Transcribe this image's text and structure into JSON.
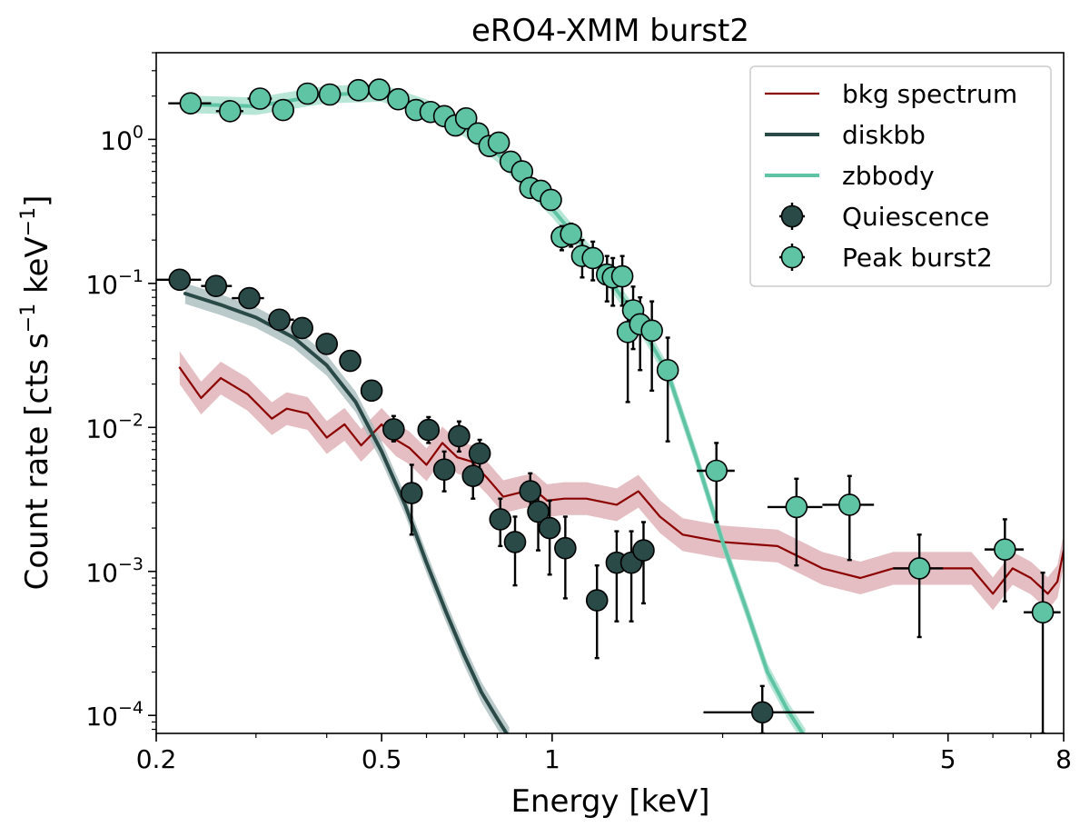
{
  "chart_data": {
    "type": "scatter",
    "title": "eRO4-XMM burst2",
    "xlabel": "Energy [keV]",
    "ylabel_main": "Count rate [cts s",
    "ylabel_exp1": "−1",
    "ylabel_mid": " keV",
    "ylabel_exp2": "−1",
    "ylabel_end": "]",
    "xscale": "log",
    "yscale": "log",
    "xlim": [
      0.2,
      8
    ],
    "ylim": [
      7.5e-05,
      4.0
    ],
    "x_ticks": [
      {
        "value": 0.2,
        "label": "0.2"
      },
      {
        "value": 0.5,
        "label": "0.5"
      },
      {
        "value": 1,
        "label": "1"
      },
      {
        "value": 5,
        "label": "5"
      },
      {
        "value": 8,
        "label": "8"
      }
    ],
    "y_ticks": [
      {
        "value": 0.0001,
        "base": "10",
        "exp": "−4"
      },
      {
        "value": 0.001,
        "base": "10",
        "exp": "−3"
      },
      {
        "value": 0.01,
        "base": "10",
        "exp": "−2"
      },
      {
        "value": 0.1,
        "base": "10",
        "exp": "−1"
      },
      {
        "value": 1,
        "base": "10",
        "exp": "0"
      }
    ],
    "legend": {
      "position": "upper right",
      "entries": [
        {
          "label": "bkg spectrum",
          "kind": "line",
          "color": "#8b0000"
        },
        {
          "label": "diskbb",
          "kind": "line",
          "color": "#2a4a48"
        },
        {
          "label": "zbbody",
          "kind": "line",
          "color": "#5fc4a4"
        },
        {
          "label": "Quiescence",
          "kind": "marker",
          "color": "#2a4a48"
        },
        {
          "label": "Peak burst2",
          "kind": "marker",
          "color": "#5fc4a4"
        }
      ]
    },
    "colors": {
      "bkg": "#8b0000",
      "bkg_band": "#d9a3a8",
      "quiescence": "#2a4a48",
      "diskbb_band": "#a9bcbc",
      "peak": "#5fc4a4",
      "zbbody_band": "#9fdcc8",
      "errorbar": "#000000"
    },
    "series": [
      {
        "name": "bkg spectrum",
        "kind": "line",
        "x": [
          0.22,
          0.24,
          0.26,
          0.29,
          0.32,
          0.34,
          0.37,
          0.4,
          0.43,
          0.46,
          0.5,
          0.53,
          0.56,
          0.6,
          0.64,
          0.68,
          0.72,
          0.77,
          0.82,
          0.87,
          0.93,
          0.98,
          1.05,
          1.15,
          1.3,
          1.42,
          1.55,
          1.7,
          2.0,
          2.5,
          3.0,
          3.5,
          4.0,
          4.5,
          5.0,
          5.5,
          6.0,
          6.5,
          7.0,
          7.5,
          7.8,
          8.0
        ],
        "y": [
          0.026,
          0.016,
          0.022,
          0.017,
          0.0115,
          0.0135,
          0.0125,
          0.0085,
          0.0105,
          0.0075,
          0.0105,
          0.0082,
          0.0072,
          0.0055,
          0.0078,
          0.0062,
          0.0058,
          0.0044,
          0.0033,
          0.0035,
          0.0037,
          0.0031,
          0.0032,
          0.0032,
          0.0029,
          0.0036,
          0.0024,
          0.0018,
          0.0016,
          0.0015,
          0.00105,
          0.0009,
          0.00105,
          0.00105,
          0.00105,
          0.00105,
          0.0007,
          0.00105,
          0.0009,
          0.0007,
          0.00085,
          0.0014
        ],
        "band_factor": 1.3
      },
      {
        "name": "diskbb",
        "kind": "line",
        "x": [
          0.225,
          0.26,
          0.3,
          0.35,
          0.4,
          0.45,
          0.5,
          0.55,
          0.6,
          0.65,
          0.7,
          0.75,
          0.8,
          0.84
        ],
        "y": [
          0.085,
          0.071,
          0.058,
          0.042,
          0.027,
          0.015,
          0.0068,
          0.0029,
          0.00115,
          0.00052,
          0.00026,
          0.000145,
          9.5e-05,
          7e-05
        ],
        "band_factor": 1.18
      },
      {
        "name": "zbbody",
        "kind": "line",
        "x": [
          0.23,
          0.3,
          0.4,
          0.5,
          0.6,
          0.7,
          0.8,
          0.9,
          1.0,
          1.1,
          1.2,
          1.4,
          1.6,
          1.8,
          2.0,
          2.2,
          2.4,
          2.6,
          2.8
        ],
        "y": [
          1.75,
          1.7,
          2.05,
          2.1,
          1.65,
          1.2,
          0.8,
          0.5,
          0.33,
          0.21,
          0.14,
          0.06,
          0.024,
          0.006,
          0.0016,
          0.00055,
          0.0002,
          0.00011,
          7e-05
        ],
        "band_factor": 1.15
      },
      {
        "name": "Quiescence",
        "kind": "points",
        "points": [
          {
            "x": 0.22,
            "y": 0.106,
            "xlo": 0.2,
            "xhi": 0.24,
            "ylo": 0.1,
            "yhi": 0.112
          },
          {
            "x": 0.255,
            "y": 0.096,
            "xlo": 0.24,
            "xhi": 0.272,
            "ylo": 0.09,
            "yhi": 0.103
          },
          {
            "x": 0.292,
            "y": 0.079,
            "xlo": 0.272,
            "xhi": 0.31,
            "ylo": 0.073,
            "yhi": 0.085
          },
          {
            "x": 0.33,
            "y": 0.056,
            "xlo": 0.315,
            "xhi": 0.35,
            "ylo": 0.051,
            "yhi": 0.061
          },
          {
            "x": 0.362,
            "y": 0.049,
            "xlo": 0.35,
            "xhi": 0.378,
            "ylo": 0.045,
            "yhi": 0.053
          },
          {
            "x": 0.4,
            "y": 0.038,
            "xlo": 0.385,
            "xhi": 0.415,
            "ylo": 0.034,
            "yhi": 0.042
          },
          {
            "x": 0.44,
            "y": 0.029,
            "xlo": 0.43,
            "xhi": 0.455,
            "ylo": 0.026,
            "yhi": 0.032
          },
          {
            "x": 0.48,
            "y": 0.018,
            "xlo": 0.47,
            "xhi": 0.49,
            "ylo": 0.016,
            "yhi": 0.02
          },
          {
            "x": 0.525,
            "y": 0.0097,
            "xlo": 0.51,
            "xhi": 0.54,
            "ylo": 0.008,
            "yhi": 0.012
          },
          {
            "x": 0.565,
            "y": 0.0035,
            "xlo": 0.555,
            "xhi": 0.575,
            "ylo": 0.0018,
            "yhi": 0.0055
          },
          {
            "x": 0.605,
            "y": 0.0096,
            "xlo": 0.59,
            "xhi": 0.62,
            "ylo": 0.0078,
            "yhi": 0.0118
          },
          {
            "x": 0.645,
            "y": 0.0051,
            "xlo": 0.635,
            "xhi": 0.655,
            "ylo": 0.0036,
            "yhi": 0.0068
          },
          {
            "x": 0.685,
            "y": 0.0087,
            "xlo": 0.672,
            "xhi": 0.698,
            "ylo": 0.0068,
            "yhi": 0.011
          },
          {
            "x": 0.725,
            "y": 0.0046,
            "xlo": 0.715,
            "xhi": 0.735,
            "ylo": 0.0032,
            "yhi": 0.0062
          },
          {
            "x": 0.745,
            "y": 0.0066,
            "xlo": 0.73,
            "xhi": 0.76,
            "ylo": 0.0051,
            "yhi": 0.0082
          },
          {
            "x": 0.81,
            "y": 0.0023,
            "xlo": 0.8,
            "xhi": 0.82,
            "ylo": 0.0015,
            "yhi": 0.0032
          },
          {
            "x": 0.86,
            "y": 0.0016,
            "xlo": 0.85,
            "xhi": 0.87,
            "ylo": 0.0008,
            "yhi": 0.0024
          },
          {
            "x": 0.915,
            "y": 0.0036,
            "xlo": 0.9,
            "xhi": 0.93,
            "ylo": 0.0026,
            "yhi": 0.0048
          },
          {
            "x": 0.945,
            "y": 0.0026,
            "xlo": 0.935,
            "xhi": 0.955,
            "ylo": 0.0014,
            "yhi": 0.0038
          },
          {
            "x": 0.99,
            "y": 0.002,
            "xlo": 0.98,
            "xhi": 1.0,
            "ylo": 0.00095,
            "yhi": 0.0031
          },
          {
            "x": 1.055,
            "y": 0.00145,
            "xlo": 1.045,
            "xhi": 1.065,
            "ylo": 0.00065,
            "yhi": 0.0024
          },
          {
            "x": 1.2,
            "y": 0.00063,
            "xlo": 1.17,
            "xhi": 1.235,
            "ylo": 0.00025,
            "yhi": 0.0011
          },
          {
            "x": 1.3,
            "y": 0.00115,
            "xlo": 1.29,
            "xhi": 1.31,
            "ylo": 0.00045,
            "yhi": 0.0019
          },
          {
            "x": 1.38,
            "y": 0.00115,
            "xlo": 1.37,
            "xhi": 1.39,
            "ylo": 0.00045,
            "yhi": 0.0019
          },
          {
            "x": 1.45,
            "y": 0.0014,
            "xlo": 1.44,
            "xhi": 1.46,
            "ylo": 0.0006,
            "yhi": 0.0022
          },
          {
            "x": 2.35,
            "y": 0.000105,
            "xlo": 1.85,
            "xhi": 2.9,
            "ylo": 7.5e-05,
            "yhi": 0.00016
          }
        ]
      },
      {
        "name": "Peak burst2",
        "kind": "points",
        "points": [
          {
            "x": 0.23,
            "y": 1.78,
            "xlo": 0.21,
            "xhi": 0.25,
            "ylo": 1.65,
            "yhi": 1.92
          },
          {
            "x": 0.27,
            "y": 1.57,
            "xlo": 0.255,
            "xhi": 0.285,
            "ylo": 1.44,
            "yhi": 1.7
          },
          {
            "x": 0.305,
            "y": 1.92,
            "xlo": 0.29,
            "xhi": 0.32,
            "ylo": 1.78,
            "yhi": 2.06
          },
          {
            "x": 0.335,
            "y": 1.6,
            "xlo": 0.325,
            "xhi": 0.345,
            "ylo": 1.46,
            "yhi": 1.75
          },
          {
            "x": 0.37,
            "y": 2.08,
            "xlo": 0.355,
            "xhi": 0.385,
            "ylo": 1.95,
            "yhi": 2.22
          },
          {
            "x": 0.405,
            "y": 2.05,
            "xlo": 0.39,
            "xhi": 0.42,
            "ylo": 1.92,
            "yhi": 2.18
          },
          {
            "x": 0.455,
            "y": 2.2,
            "xlo": 0.44,
            "xhi": 0.47,
            "ylo": 2.07,
            "yhi": 2.33
          },
          {
            "x": 0.495,
            "y": 2.22,
            "xlo": 0.48,
            "xhi": 0.51,
            "ylo": 2.09,
            "yhi": 2.35
          },
          {
            "x": 0.535,
            "y": 1.9,
            "xlo": 0.52,
            "xhi": 0.55,
            "ylo": 1.78,
            "yhi": 2.02
          },
          {
            "x": 0.575,
            "y": 1.6,
            "xlo": 0.565,
            "xhi": 0.585,
            "ylo": 1.49,
            "yhi": 1.71
          },
          {
            "x": 0.61,
            "y": 1.55,
            "xlo": 0.6,
            "xhi": 0.62,
            "ylo": 1.44,
            "yhi": 1.66
          },
          {
            "x": 0.645,
            "y": 1.45,
            "xlo": 0.635,
            "xhi": 0.655,
            "ylo": 1.34,
            "yhi": 1.56
          },
          {
            "x": 0.675,
            "y": 1.25,
            "xlo": 0.665,
            "xhi": 0.685,
            "ylo": 1.15,
            "yhi": 1.35
          },
          {
            "x": 0.705,
            "y": 1.4,
            "xlo": 0.695,
            "xhi": 0.715,
            "ylo": 1.29,
            "yhi": 1.51
          },
          {
            "x": 0.74,
            "y": 1.1,
            "xlo": 0.73,
            "xhi": 0.75,
            "ylo": 1.0,
            "yhi": 1.2
          },
          {
            "x": 0.775,
            "y": 0.9,
            "xlo": 0.765,
            "xhi": 0.785,
            "ylo": 0.82,
            "yhi": 0.98
          },
          {
            "x": 0.805,
            "y": 0.95,
            "xlo": 0.795,
            "xhi": 0.815,
            "ylo": 0.87,
            "yhi": 1.03
          },
          {
            "x": 0.845,
            "y": 0.7,
            "xlo": 0.835,
            "xhi": 0.855,
            "ylo": 0.63,
            "yhi": 0.77
          },
          {
            "x": 0.885,
            "y": 0.6,
            "xlo": 0.875,
            "xhi": 0.895,
            "ylo": 0.54,
            "yhi": 0.66
          },
          {
            "x": 0.915,
            "y": 0.46,
            "xlo": 0.905,
            "xhi": 0.925,
            "ylo": 0.41,
            "yhi": 0.51
          },
          {
            "x": 0.955,
            "y": 0.44,
            "xlo": 0.945,
            "xhi": 0.965,
            "ylo": 0.39,
            "yhi": 0.49
          },
          {
            "x": 0.995,
            "y": 0.38,
            "xlo": 0.985,
            "xhi": 1.005,
            "ylo": 0.33,
            "yhi": 0.43
          },
          {
            "x": 1.04,
            "y": 0.21,
            "xlo": 1.03,
            "xhi": 1.05,
            "ylo": 0.17,
            "yhi": 0.25
          },
          {
            "x": 1.08,
            "y": 0.22,
            "xlo": 1.07,
            "xhi": 1.09,
            "ylo": 0.18,
            "yhi": 0.26
          },
          {
            "x": 1.13,
            "y": 0.155,
            "xlo": 1.12,
            "xhi": 1.14,
            "ylo": 0.11,
            "yhi": 0.2
          },
          {
            "x": 1.18,
            "y": 0.15,
            "xlo": 1.17,
            "xhi": 1.19,
            "ylo": 0.105,
            "yhi": 0.195
          },
          {
            "x": 1.25,
            "y": 0.115,
            "xlo": 1.24,
            "xhi": 1.26,
            "ylo": 0.075,
            "yhi": 0.155
          },
          {
            "x": 1.28,
            "y": 0.11,
            "xlo": 1.27,
            "xhi": 1.29,
            "ylo": 0.07,
            "yhi": 0.15
          },
          {
            "x": 1.33,
            "y": 0.112,
            "xlo": 1.32,
            "xhi": 1.34,
            "ylo": 0.07,
            "yhi": 0.155
          },
          {
            "x": 1.36,
            "y": 0.046,
            "xlo": 1.35,
            "xhi": 1.37,
            "ylo": 0.015,
            "yhi": 0.075
          },
          {
            "x": 1.39,
            "y": 0.065,
            "xlo": 1.38,
            "xhi": 1.4,
            "ylo": 0.035,
            "yhi": 0.095
          },
          {
            "x": 1.43,
            "y": 0.052,
            "xlo": 1.42,
            "xhi": 1.44,
            "ylo": 0.025,
            "yhi": 0.08
          },
          {
            "x": 1.5,
            "y": 0.047,
            "xlo": 1.49,
            "xhi": 1.51,
            "ylo": 0.018,
            "yhi": 0.075
          },
          {
            "x": 1.6,
            "y": 0.025,
            "xlo": 1.59,
            "xhi": 1.61,
            "ylo": 0.008,
            "yhi": 0.042
          },
          {
            "x": 1.95,
            "y": 0.005,
            "xlo": 1.8,
            "xhi": 2.1,
            "ylo": 0.0022,
            "yhi": 0.0078
          },
          {
            "x": 2.7,
            "y": 0.0028,
            "xlo": 2.4,
            "xhi": 3.0,
            "ylo": 0.0011,
            "yhi": 0.0044
          },
          {
            "x": 3.35,
            "y": 0.0029,
            "xlo": 3.0,
            "xhi": 3.7,
            "ylo": 0.0012,
            "yhi": 0.0046
          },
          {
            "x": 4.45,
            "y": 0.00105,
            "xlo": 4.0,
            "xhi": 4.9,
            "ylo": 0.00035,
            "yhi": 0.0018
          },
          {
            "x": 6.3,
            "y": 0.00142,
            "xlo": 5.8,
            "xhi": 6.8,
            "ylo": 0.00062,
            "yhi": 0.0023
          },
          {
            "x": 7.35,
            "y": 0.00052,
            "xlo": 6.8,
            "xhi": 7.9,
            "ylo": 7.5e-05,
            "yhi": 0.00098
          }
        ]
      }
    ]
  }
}
